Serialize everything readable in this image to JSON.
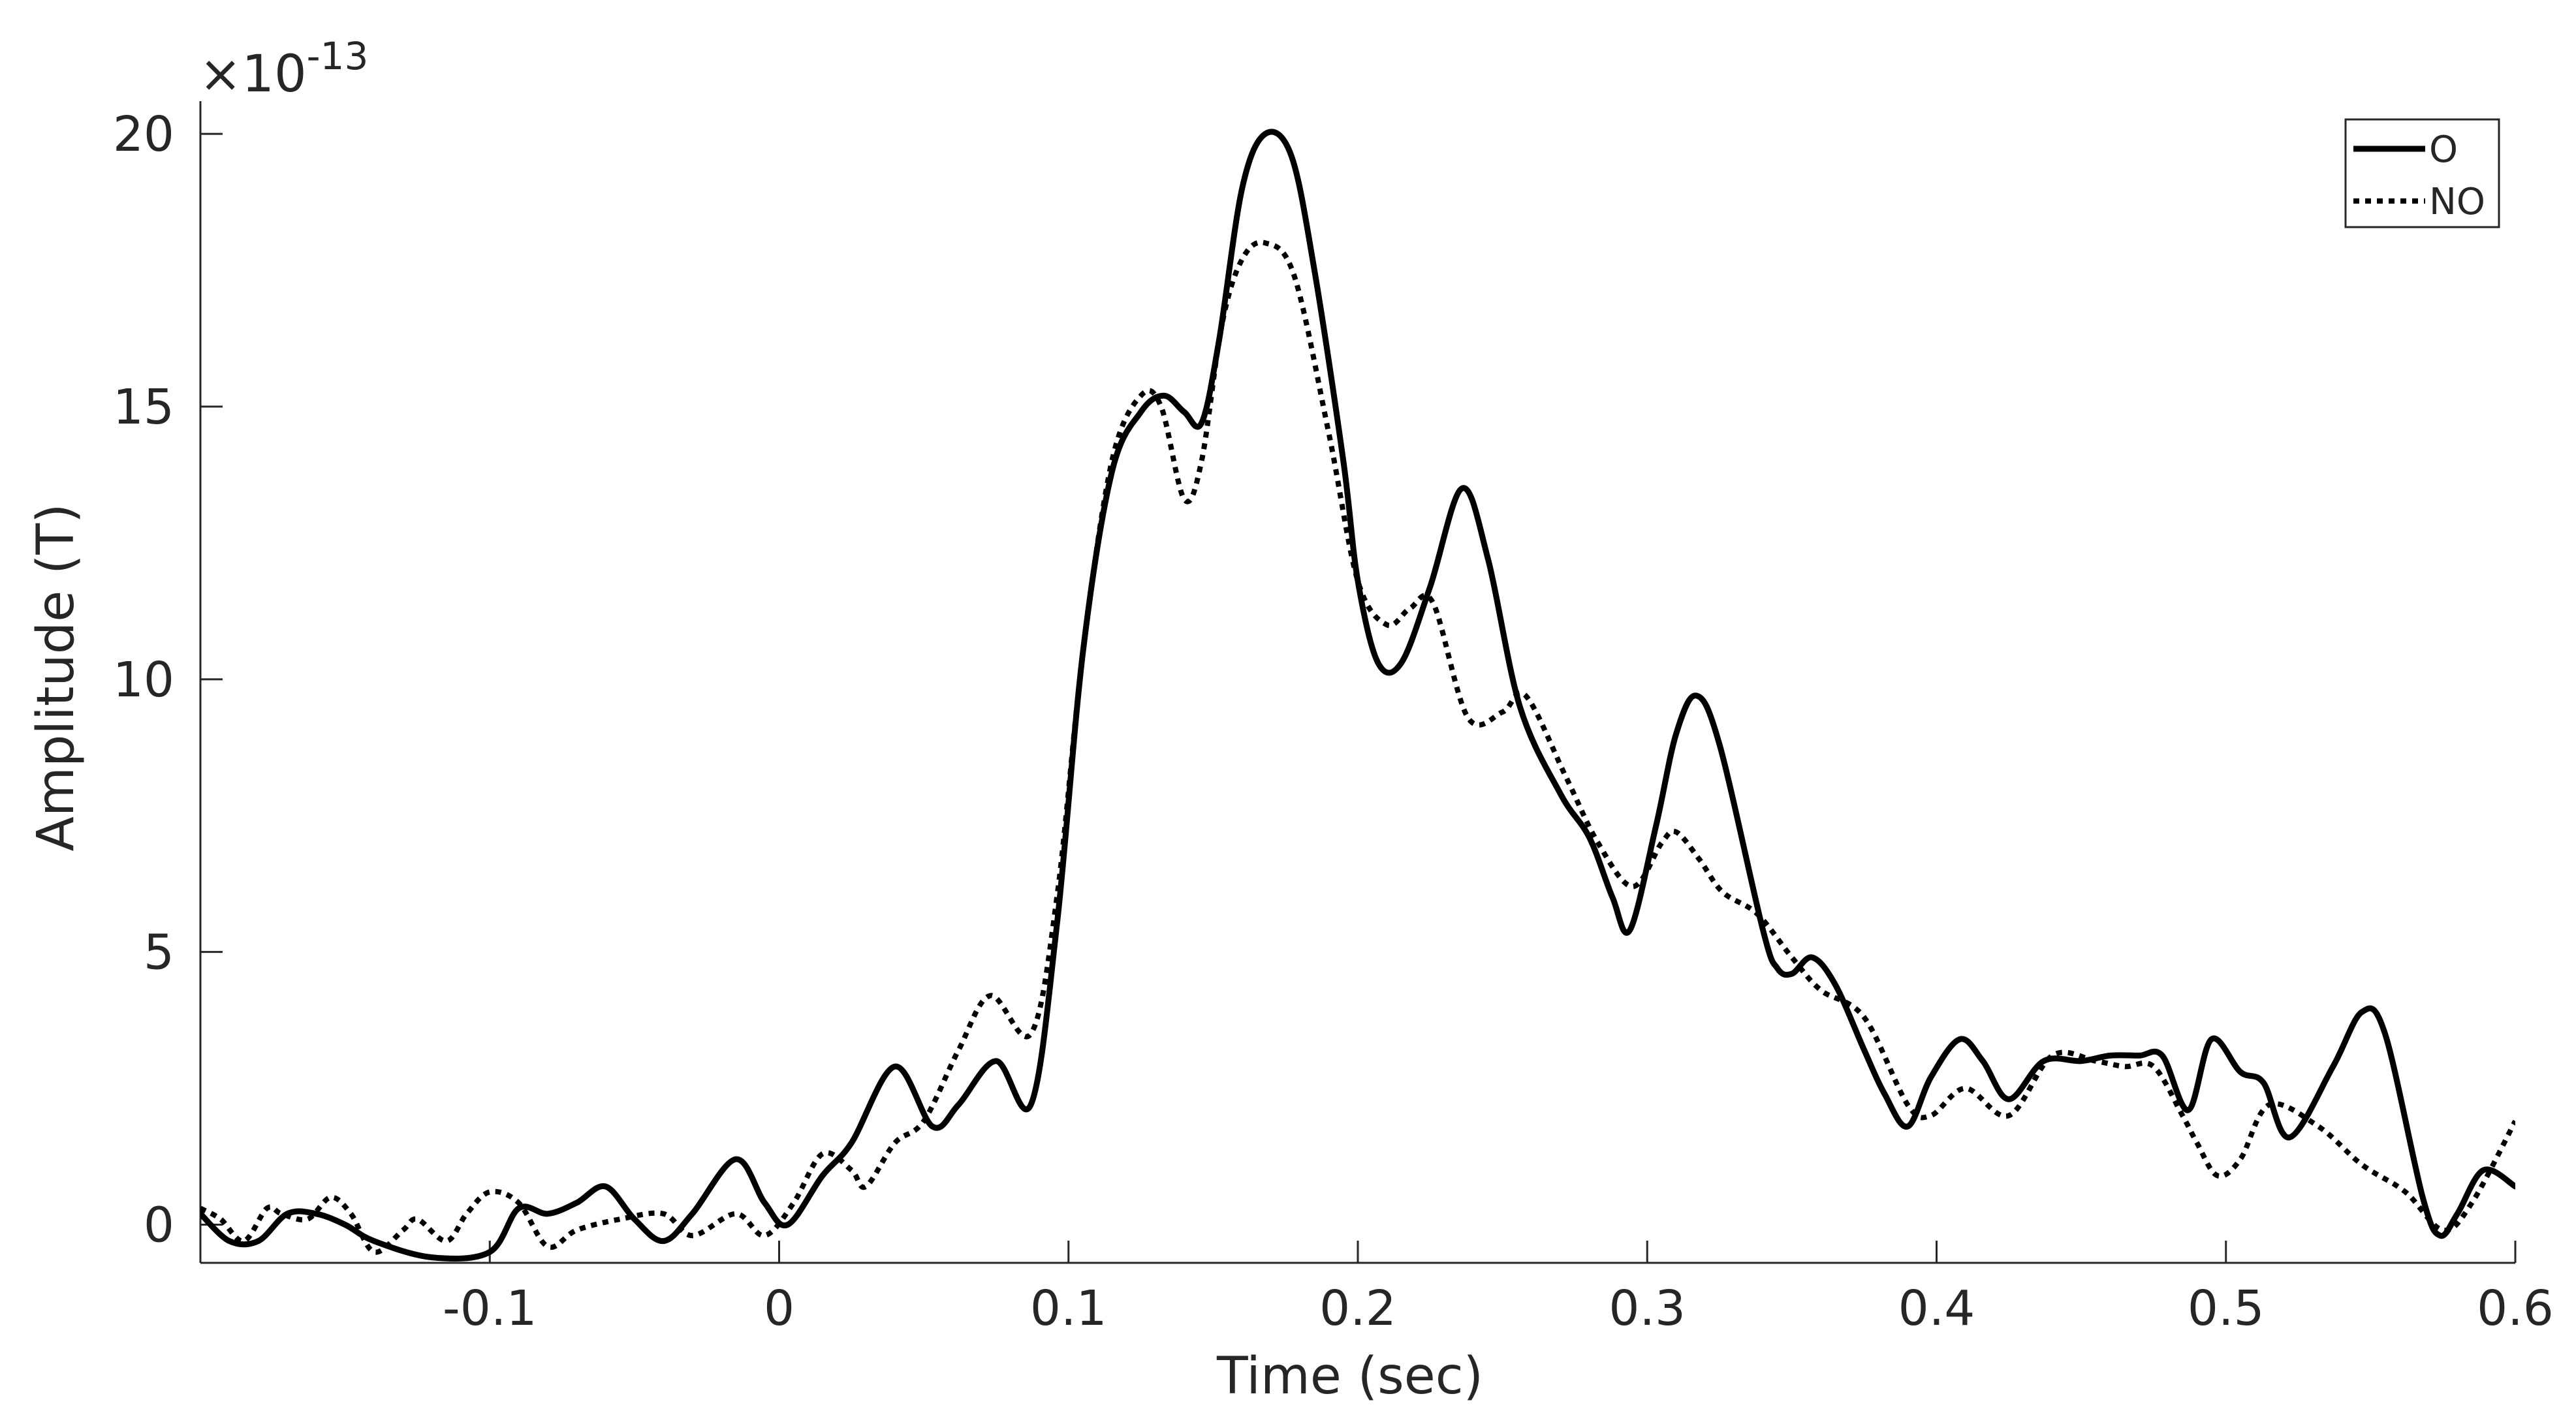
{
  "chart_data": {
    "type": "line",
    "title": "",
    "xlabel": "Time (sec)",
    "ylabel": "Amplitude (T)",
    "y_exponent_label": "×10",
    "y_exponent": "-13",
    "xlim": [
      -0.2,
      0.6
    ],
    "ylim": [
      -0.7,
      20.6
    ],
    "x_ticks": [
      -0.1,
      0,
      0.1,
      0.2,
      0.3,
      0.4,
      0.5,
      0.6
    ],
    "x_tick_labels": [
      "-0.1",
      "0",
      "0.1",
      "0.2",
      "0.3",
      "0.4",
      "0.5",
      "0.6"
    ],
    "y_ticks": [
      0,
      5,
      10,
      15,
      20
    ],
    "y_tick_labels": [
      "0",
      "5",
      "10",
      "15",
      "20"
    ],
    "grid": false,
    "legend_position": "top-right",
    "colors": {
      "axis": "#262626",
      "line": "#000000"
    },
    "series": [
      {
        "name": "O",
        "style": "solid",
        "points": [
          [
            -0.2,
            0.2
          ],
          [
            -0.19,
            -0.3
          ],
          [
            -0.18,
            -0.3
          ],
          [
            -0.17,
            0.2
          ],
          [
            -0.16,
            0.2
          ],
          [
            -0.15,
            0.0
          ],
          [
            -0.14,
            -0.3
          ],
          [
            -0.12,
            -0.6
          ],
          [
            -0.1,
            -0.5
          ],
          [
            -0.09,
            0.3
          ],
          [
            -0.08,
            0.2
          ],
          [
            -0.07,
            0.4
          ],
          [
            -0.06,
            0.7
          ],
          [
            -0.05,
            0.1
          ],
          [
            -0.04,
            -0.3
          ],
          [
            -0.03,
            0.2
          ],
          [
            -0.015,
            1.2
          ],
          [
            -0.005,
            0.4
          ],
          [
            0.003,
            0.0
          ],
          [
            0.015,
            0.9
          ],
          [
            0.025,
            1.5
          ],
          [
            0.04,
            2.9
          ],
          [
            0.053,
            1.8
          ],
          [
            0.062,
            2.2
          ],
          [
            0.075,
            3.0
          ],
          [
            0.087,
            2.2
          ],
          [
            0.096,
            5.5
          ],
          [
            0.105,
            10.5
          ],
          [
            0.115,
            13.8
          ],
          [
            0.125,
            14.9
          ],
          [
            0.133,
            15.2
          ],
          [
            0.14,
            14.9
          ],
          [
            0.146,
            14.7
          ],
          [
            0.152,
            16.2
          ],
          [
            0.16,
            19.0
          ],
          [
            0.168,
            20.0
          ],
          [
            0.177,
            19.6
          ],
          [
            0.185,
            17.5
          ],
          [
            0.195,
            14.0
          ],
          [
            0.2,
            11.8
          ],
          [
            0.207,
            10.3
          ],
          [
            0.215,
            10.3
          ],
          [
            0.225,
            11.7
          ],
          [
            0.236,
            13.5
          ],
          [
            0.245,
            12.2
          ],
          [
            0.256,
            9.5
          ],
          [
            0.27,
            7.9
          ],
          [
            0.28,
            7.1
          ],
          [
            0.288,
            6.0
          ],
          [
            0.294,
            5.4
          ],
          [
            0.303,
            7.3
          ],
          [
            0.31,
            9.0
          ],
          [
            0.317,
            9.7
          ],
          [
            0.325,
            8.8
          ],
          [
            0.34,
            5.4
          ],
          [
            0.345,
            4.7
          ],
          [
            0.35,
            4.6
          ],
          [
            0.357,
            4.9
          ],
          [
            0.365,
            4.4
          ],
          [
            0.375,
            3.2
          ],
          [
            0.382,
            2.4
          ],
          [
            0.39,
            1.8
          ],
          [
            0.398,
            2.7
          ],
          [
            0.408,
            3.4
          ],
          [
            0.416,
            3.0
          ],
          [
            0.425,
            2.3
          ],
          [
            0.437,
            3.0
          ],
          [
            0.45,
            3.0
          ],
          [
            0.46,
            3.1
          ],
          [
            0.47,
            3.1
          ],
          [
            0.478,
            3.1
          ],
          [
            0.487,
            2.1
          ],
          [
            0.495,
            3.4
          ],
          [
            0.505,
            2.8
          ],
          [
            0.513,
            2.6
          ],
          [
            0.522,
            1.6
          ],
          [
            0.537,
            2.9
          ],
          [
            0.547,
            3.9
          ],
          [
            0.555,
            3.5
          ],
          [
            0.568,
            0.5
          ],
          [
            0.574,
            -0.2
          ],
          [
            0.58,
            0.2
          ],
          [
            0.589,
            1.0
          ],
          [
            0.6,
            0.7
          ]
        ]
      },
      {
        "name": "NO",
        "style": "dotted",
        "points": [
          [
            -0.2,
            0.3
          ],
          [
            -0.193,
            0.1
          ],
          [
            -0.185,
            -0.3
          ],
          [
            -0.177,
            0.3
          ],
          [
            -0.172,
            0.2
          ],
          [
            -0.163,
            0.1
          ],
          [
            -0.155,
            0.5
          ],
          [
            -0.148,
            0.2
          ],
          [
            -0.14,
            -0.5
          ],
          [
            -0.13,
            -0.1
          ],
          [
            -0.125,
            0.1
          ],
          [
            -0.115,
            -0.3
          ],
          [
            -0.108,
            0.2
          ],
          [
            -0.1,
            0.6
          ],
          [
            -0.09,
            0.4
          ],
          [
            -0.08,
            -0.4
          ],
          [
            -0.07,
            -0.1
          ],
          [
            -0.055,
            0.1
          ],
          [
            -0.04,
            0.2
          ],
          [
            -0.03,
            -0.2
          ],
          [
            -0.015,
            0.2
          ],
          [
            -0.005,
            -0.2
          ],
          [
            0.005,
            0.4
          ],
          [
            0.015,
            1.3
          ],
          [
            0.025,
            1.0
          ],
          [
            0.03,
            0.7
          ],
          [
            0.04,
            1.5
          ],
          [
            0.05,
            1.9
          ],
          [
            0.062,
            3.2
          ],
          [
            0.073,
            4.2
          ],
          [
            0.087,
            3.5
          ],
          [
            0.096,
            6.0
          ],
          [
            0.105,
            10.5
          ],
          [
            0.115,
            14.0
          ],
          [
            0.125,
            15.2
          ],
          [
            0.132,
            15.0
          ],
          [
            0.14,
            13.3
          ],
          [
            0.146,
            14.0
          ],
          [
            0.153,
            16.5
          ],
          [
            0.16,
            17.7
          ],
          [
            0.168,
            18.0
          ],
          [
            0.178,
            17.4
          ],
          [
            0.19,
            14.5
          ],
          [
            0.2,
            11.8
          ],
          [
            0.21,
            11.0
          ],
          [
            0.218,
            11.3
          ],
          [
            0.226,
            11.4
          ],
          [
            0.238,
            9.3
          ],
          [
            0.25,
            9.4
          ],
          [
            0.258,
            9.7
          ],
          [
            0.272,
            8.2
          ],
          [
            0.283,
            7.0
          ],
          [
            0.295,
            6.2
          ],
          [
            0.305,
            7.0
          ],
          [
            0.31,
            7.2
          ],
          [
            0.318,
            6.7
          ],
          [
            0.326,
            6.1
          ],
          [
            0.338,
            5.7
          ],
          [
            0.35,
            4.9
          ],
          [
            0.36,
            4.3
          ],
          [
            0.375,
            3.8
          ],
          [
            0.39,
            2.2
          ],
          [
            0.398,
            2.0
          ],
          [
            0.41,
            2.5
          ],
          [
            0.425,
            2.0
          ],
          [
            0.44,
            3.1
          ],
          [
            0.455,
            3.0
          ],
          [
            0.465,
            2.9
          ],
          [
            0.475,
            2.9
          ],
          [
            0.485,
            2.0
          ],
          [
            0.49,
            1.5
          ],
          [
            0.497,
            0.9
          ],
          [
            0.505,
            1.2
          ],
          [
            0.515,
            2.2
          ],
          [
            0.532,
            1.8
          ],
          [
            0.547,
            1.1
          ],
          [
            0.562,
            0.6
          ],
          [
            0.575,
            -0.1
          ],
          [
            0.585,
            0.4
          ],
          [
            0.6,
            1.9
          ]
        ]
      }
    ]
  }
}
